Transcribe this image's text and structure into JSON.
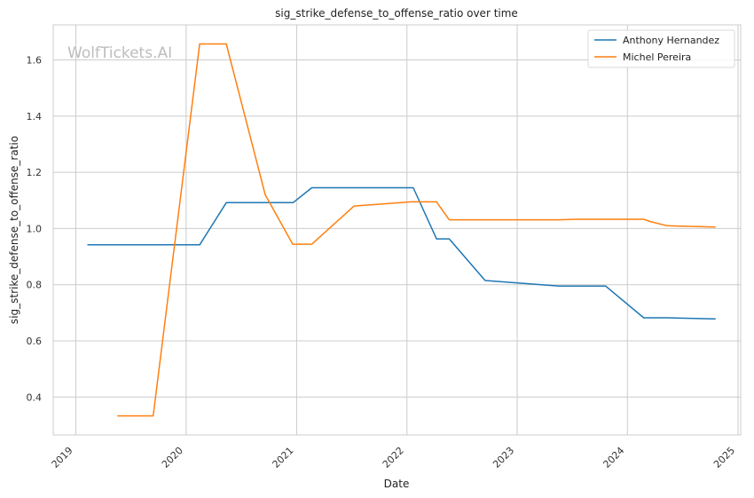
{
  "chart_data": {
    "type": "line",
    "title": "sig_strike_defense_to_offense_ratio over time",
    "xlabel": "Date",
    "ylabel": "sig_strike_defense_to_offense_ratio",
    "watermark": "WolfTickets.AI",
    "xlim": [
      "2018-10-18",
      "2025-01-10"
    ],
    "ylim": [
      0.265,
      1.725
    ],
    "x_ticks": [
      "2019",
      "2020",
      "2021",
      "2022",
      "2023",
      "2024",
      "2025"
    ],
    "y_ticks": [
      "0.4",
      "0.6",
      "0.8",
      "1.0",
      "1.2",
      "1.4",
      "1.6"
    ],
    "grid": true,
    "legend": "top-right",
    "series": [
      {
        "name": "Anthony Hernandez",
        "color": "#1f77b4",
        "points": [
          {
            "x": "2019-02-08",
            "y": 0.942
          },
          {
            "x": "2020-02-15",
            "y": 0.942
          },
          {
            "x": "2020-05-13",
            "y": 1.092
          },
          {
            "x": "2020-12-20",
            "y": 1.092
          },
          {
            "x": "2021-02-20",
            "y": 1.145
          },
          {
            "x": "2022-01-22",
            "y": 1.145
          },
          {
            "x": "2022-04-09",
            "y": 0.963
          },
          {
            "x": "2022-05-21",
            "y": 0.963
          },
          {
            "x": "2022-09-17",
            "y": 0.815
          },
          {
            "x": "2023-05-20",
            "y": 0.795
          },
          {
            "x": "2023-10-21",
            "y": 0.795
          },
          {
            "x": "2024-02-24",
            "y": 0.682
          },
          {
            "x": "2024-05-11",
            "y": 0.682
          },
          {
            "x": "2024-10-19",
            "y": 0.678
          }
        ]
      },
      {
        "name": "Michel Pereira",
        "color": "#ff7f0e",
        "points": [
          {
            "x": "2019-05-18",
            "y": 0.333
          },
          {
            "x": "2019-09-14",
            "y": 0.333
          },
          {
            "x": "2020-02-15",
            "y": 1.657
          },
          {
            "x": "2020-05-13",
            "y": 1.657
          },
          {
            "x": "2020-09-19",
            "y": 1.12
          },
          {
            "x": "2020-12-19",
            "y": 0.944
          },
          {
            "x": "2021-02-20",
            "y": 0.944
          },
          {
            "x": "2021-07-10",
            "y": 1.08
          },
          {
            "x": "2022-01-15",
            "y": 1.095
          },
          {
            "x": "2022-04-09",
            "y": 1.095
          },
          {
            "x": "2022-05-21",
            "y": 1.031
          },
          {
            "x": "2023-05-20",
            "y": 1.031
          },
          {
            "x": "2023-07-15",
            "y": 1.033
          },
          {
            "x": "2024-02-24",
            "y": 1.033
          },
          {
            "x": "2024-03-16",
            "y": 1.025
          },
          {
            "x": "2024-05-11",
            "y": 1.01
          },
          {
            "x": "2024-10-19",
            "y": 1.005
          }
        ]
      }
    ]
  }
}
